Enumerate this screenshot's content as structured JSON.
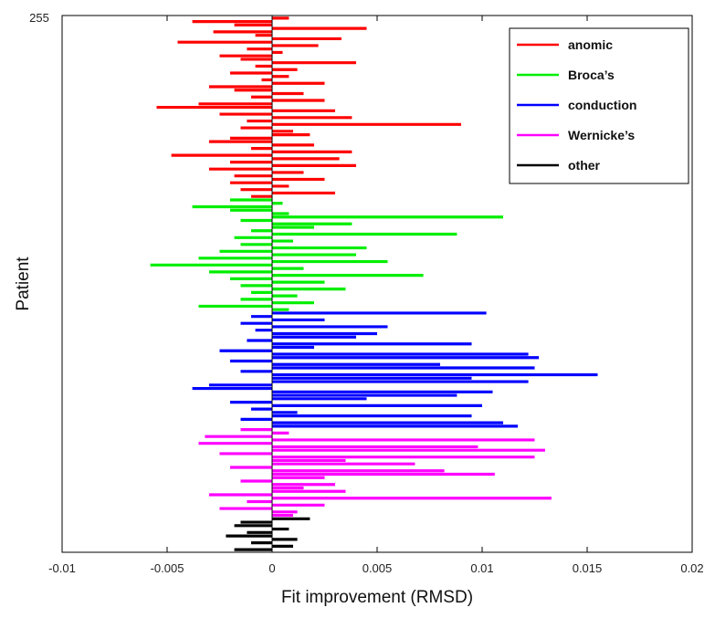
{
  "chart_data": {
    "type": "bar",
    "orientation": "horizontal",
    "xlabel": "Fit improvement (RMSD)",
    "ylabel": "Patient",
    "xlim": [
      -0.01,
      0.02
    ],
    "x_ticks": [
      "-0.01",
      "-0.005",
      "0",
      "0.005",
      "0.01",
      "0.015",
      "0.02"
    ],
    "y_top_label": "255",
    "grid": false,
    "legend_position": "top-right",
    "series": [
      {
        "name": "anomic",
        "color": "#ff0000",
        "values": [
          0.0008,
          -0.0038,
          -0.0018,
          0.0045,
          -0.0028,
          -0.0008,
          0.0033,
          -0.0045,
          0.0022,
          -0.0012,
          0.0005,
          -0.0025,
          -0.0015,
          0.004,
          -0.0008,
          0.0012,
          -0.002,
          0.0008,
          -0.0005,
          0.0025,
          -0.003,
          -0.0018,
          0.0015,
          -0.001,
          0.0025,
          -0.0035,
          -0.0055,
          0.003,
          -0.0025,
          0.0038,
          -0.0012,
          0.009,
          -0.0015,
          0.001,
          0.0018,
          -0.002,
          -0.003,
          0.002,
          -0.001,
          0.0038,
          -0.0048,
          0.0032,
          -0.002,
          0.004,
          -0.003,
          0.0015,
          -0.0018,
          0.0025,
          -0.002,
          0.0008,
          -0.0015,
          0.003,
          -0.001
        ]
      },
      {
        "name": "Broca’s",
        "color": "#00ee00",
        "values": [
          -0.002,
          0.0005,
          -0.0038,
          -0.002,
          0.0008,
          0.011,
          -0.0015,
          0.0038,
          0.002,
          -0.001,
          0.0088,
          -0.0018,
          0.001,
          -0.0015,
          0.0045,
          -0.0025,
          0.004,
          -0.0035,
          0.0055,
          -0.0058,
          0.0015,
          -0.003,
          0.0072,
          -0.002,
          0.0025,
          -0.0015,
          0.0035,
          -0.001,
          0.0012,
          -0.0015,
          0.002,
          -0.0035,
          0.0008
        ]
      },
      {
        "name": "conduction",
        "color": "#0000ff",
        "values": [
          0.0102,
          -0.001,
          0.0025,
          -0.0015,
          0.0055,
          -0.0008,
          0.005,
          0.004,
          -0.0012,
          0.0095,
          0.002,
          -0.0025,
          0.0122,
          0.0127,
          -0.002,
          0.008,
          0.0125,
          -0.0015,
          0.0155,
          0.0095,
          0.0122,
          -0.003,
          -0.0038,
          0.0105,
          0.0088,
          0.0045,
          -0.002,
          0.01,
          -0.001,
          0.0012,
          0.0095,
          -0.0015,
          0.011,
          0.0117
        ]
      },
      {
        "name": "Wernicke’s",
        "color": "#ff00ff",
        "values": [
          -0.0015,
          0.0008,
          -0.0032,
          0.0125,
          -0.0035,
          0.0098,
          0.013,
          -0.0025,
          0.0125,
          0.0035,
          0.0068,
          -0.002,
          0.0082,
          0.0106,
          0.0025,
          -0.0015,
          0.003,
          0.0015,
          0.0035,
          -0.003,
          0.0133,
          -0.0012,
          0.0025,
          -0.0025,
          0.0012,
          0.001
        ]
      },
      {
        "name": "other",
        "color": "#000000",
        "values": [
          0.0018,
          -0.0015,
          -0.0018,
          0.0008,
          -0.0012,
          -0.0022,
          0.0012,
          -0.001,
          0.001,
          -0.0018
        ]
      }
    ]
  }
}
